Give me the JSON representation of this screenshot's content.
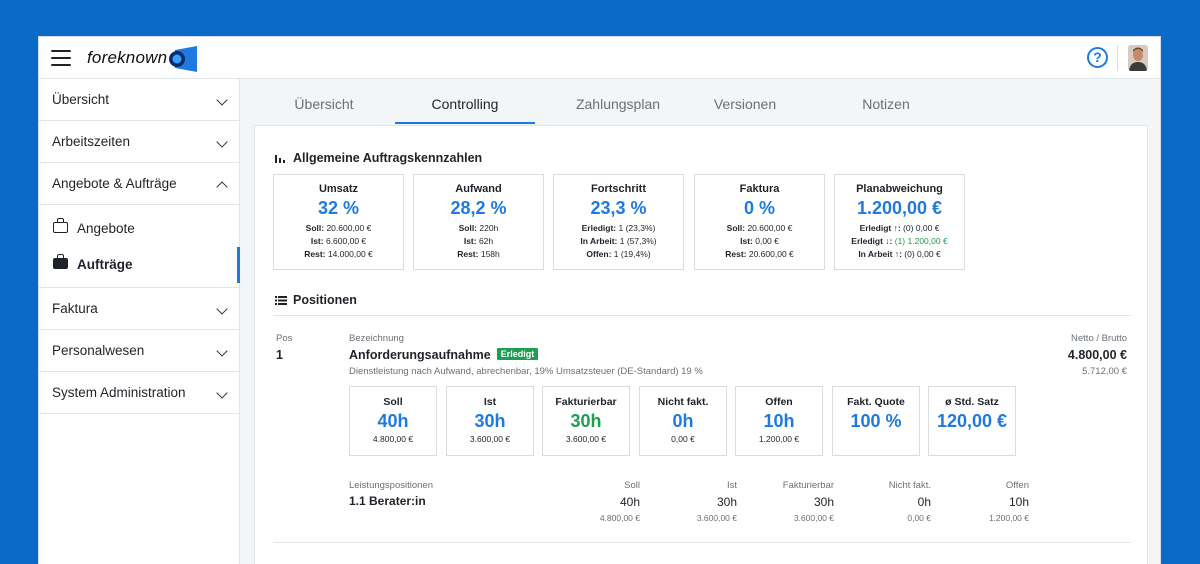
{
  "header": {
    "brand": "foreknown",
    "help_icon": "question-circle-icon"
  },
  "sidebar": {
    "items": [
      {
        "label": "Übersicht"
      },
      {
        "label": "Arbeitszeiten"
      },
      {
        "label": "Angebote & Aufträge"
      },
      {
        "label": "Faktura"
      },
      {
        "label": "Personalwesen"
      },
      {
        "label": "System Administration"
      }
    ],
    "sub_items": [
      {
        "label": "Angebote"
      },
      {
        "label": "Aufträge"
      }
    ]
  },
  "tabs": [
    {
      "label": "Übersicht"
    },
    {
      "label": "Controlling"
    },
    {
      "label": "Zahlungsplan"
    },
    {
      "label": "Versionen"
    },
    {
      "label": "Notizen"
    }
  ],
  "general": {
    "title": "Allgemeine Auftragskennzahlen",
    "kpis": [
      {
        "label": "Umsatz",
        "value": "32 %",
        "l1k": "Soll:",
        "l1v": " 20.600,00 €",
        "l2k": "Ist:",
        "l2v": " 6.600,00 €",
        "l3k": "Rest:",
        "l3v": " 14.000,00 €"
      },
      {
        "label": "Aufwand",
        "value": "28,2 %",
        "l1k": "Soll:",
        "l1v": " 220h",
        "l2k": "Ist:",
        "l2v": " 62h",
        "l3k": "Rest:",
        "l3v": " 158h"
      },
      {
        "label": "Fortschritt",
        "value": "23,3 %",
        "l1k": "Erledigt:",
        "l1v": " 1 (23,3%)",
        "l2k": "In Arbeit:",
        "l2v": " 1 (57,3%)",
        "l3k": "Offen:",
        "l3v": " 1 (19,4%)"
      },
      {
        "label": "Faktura",
        "value": "0 %",
        "l1k": "Soll:",
        "l1v": " 20.600,00 €",
        "l2k": "Ist:",
        "l2v": " 0,00 €",
        "l3k": "Rest:",
        "l3v": " 20.600,00 €"
      },
      {
        "label": "Planabweichung",
        "value": "1.200,00 €",
        "l1k": "Erledigt ↑:",
        "l1v": " (0) 0,00 €",
        "l2k": "Erledigt ↓:",
        "l2v": " (1) 1.200,00 €",
        "l3k": "In Arbeit ↑:",
        "l3v": " (0) 0,00 €"
      }
    ]
  },
  "positions": {
    "title": "Positionen",
    "pos_label": "Pos",
    "desc_label": "Bezeichnung",
    "net_label": "Netto / Brutto",
    "item": {
      "pos": "1",
      "name": "Anforderungsaufnahme",
      "status": "Erledigt",
      "description": "Dienstleistung nach Aufwand, abrechenbar, 19% Umsatzsteuer (DE-Standard) 19 %",
      "net": "4.800,00 €",
      "gross": "5.712,00 €",
      "metrics": [
        {
          "label": "Soll",
          "value": "40h",
          "sub": "4.800,00 €"
        },
        {
          "label": "Ist",
          "value": "30h",
          "sub": "3.600,00 €"
        },
        {
          "label": "Fakturierbar",
          "value": "30h",
          "sub": "3.600,00 €"
        },
        {
          "label": "Nicht fakt.",
          "value": "0h",
          "sub": "0,00 €"
        },
        {
          "label": "Offen",
          "value": "10h",
          "sub": "1.200,00 €"
        },
        {
          "label": "Fakt. Quote",
          "value": "100 %",
          "sub": ""
        },
        {
          "label": "ø Std. Satz",
          "value": "120,00 €",
          "sub": ""
        }
      ],
      "services_label": "Leistungspositionen",
      "service": {
        "name": "1.1  Berater:in",
        "cols": [
          {
            "h": "Soll",
            "v": "40h",
            "s": "4.800,00 €"
          },
          {
            "h": "Ist",
            "v": "30h",
            "s": "3.600,00 €"
          },
          {
            "h": "Fakturierbar",
            "v": "30h",
            "s": "3.600,00 €"
          },
          {
            "h": "Nicht fakt.",
            "v": "0h",
            "s": "0,00 €"
          },
          {
            "h": "Offen",
            "v": "10h",
            "s": "1.200,00 €"
          }
        ]
      }
    }
  }
}
